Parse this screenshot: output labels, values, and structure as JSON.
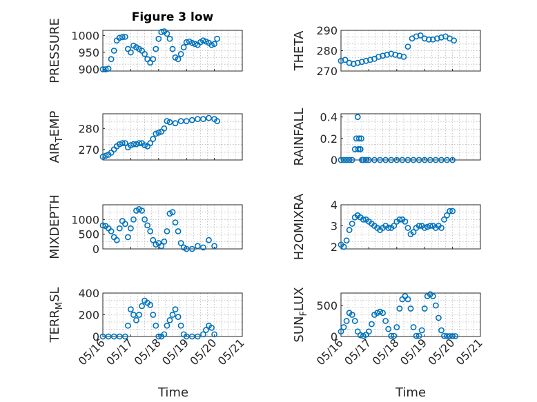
{
  "chart_data": {
    "type": "scatter",
    "marker": "circle",
    "color": "#0072BD",
    "grid": true,
    "title": "Figure 3 low",
    "xlabel": "Time",
    "xticks": [
      "05/16",
      "05/17",
      "05/18",
      "05/19",
      "05/20",
      "05/21"
    ],
    "xlim": [
      0,
      5
    ],
    "x_unit": "days from 05/16",
    "panels": [
      {
        "name": "pressure",
        "ylabel": "PRESSURE",
        "ylim": [
          895,
          1015
        ],
        "yticks": [
          900,
          950,
          1000
        ],
        "x": [
          0,
          0.1,
          0.2,
          0.3,
          0.4,
          0.5,
          0.6,
          0.7,
          0.8,
          0.9,
          1.0,
          1.1,
          1.2,
          1.3,
          1.4,
          1.5,
          1.6,
          1.7,
          1.8,
          1.9,
          2.0,
          2.1,
          2.2,
          2.3,
          2.4,
          2.5,
          2.6,
          2.7,
          2.8,
          2.9,
          3.0,
          3.1,
          3.2,
          3.3,
          3.4,
          3.5,
          3.6,
          3.7,
          3.8,
          3.9,
          4.0,
          4.1
        ],
        "values": [
          900,
          900,
          902,
          930,
          955,
          985,
          993,
          995,
          996,
          960,
          950,
          970,
          965,
          960,
          955,
          945,
          930,
          920,
          930,
          960,
          990,
          1010,
          1012,
          1005,
          990,
          960,
          935,
          930,
          945,
          965,
          980,
          982,
          978,
          975,
          972,
          980,
          985,
          982,
          978,
          972,
          975,
          990
        ]
      },
      {
        "name": "theta",
        "ylabel": "THETA",
        "ylim": [
          270,
          290
        ],
        "yticks": [
          270,
          280,
          290
        ],
        "x": [
          0,
          0.15,
          0.3,
          0.45,
          0.6,
          0.75,
          0.9,
          1.05,
          1.2,
          1.35,
          1.5,
          1.65,
          1.8,
          1.95,
          2.1,
          2.25,
          2.4,
          2.55,
          2.7,
          2.85,
          3.0,
          3.15,
          3.3,
          3.45,
          3.6,
          3.75,
          3.9,
          4.05
        ],
        "values": [
          275,
          275.5,
          274,
          273.5,
          274,
          274.5,
          275,
          275.5,
          276,
          277,
          277.5,
          278,
          278.5,
          278,
          277.5,
          277,
          282,
          286,
          287,
          287.5,
          286,
          285.5,
          285.5,
          286,
          286.5,
          287,
          286,
          285
        ]
      },
      {
        "name": "air-temp",
        "ylabel": "AIR_TEMP",
        "ylim": [
          265,
          287
        ],
        "yticks": [
          270,
          280
        ],
        "x": [
          0,
          0.1,
          0.2,
          0.3,
          0.4,
          0.5,
          0.6,
          0.7,
          0.8,
          0.9,
          1.0,
          1.1,
          1.2,
          1.3,
          1.4,
          1.5,
          1.6,
          1.7,
          1.8,
          1.9,
          2.0,
          2.1,
          2.2,
          2.3,
          2.4,
          2.6,
          2.8,
          3.0,
          3.2,
          3.4,
          3.6,
          3.8,
          4.0,
          4.1
        ],
        "values": [
          266.5,
          267,
          267.5,
          268.5,
          270,
          271.5,
          272.5,
          273,
          273,
          271,
          272,
          272.5,
          272.5,
          273,
          273,
          272,
          271.5,
          273,
          275,
          277.5,
          278,
          278.5,
          280,
          283.5,
          283,
          282.5,
          283.5,
          283.5,
          284,
          284.5,
          284.5,
          285,
          284.5,
          283.5
        ]
      },
      {
        "name": "rainfall",
        "ylabel": "RAINFALL",
        "ylim": [
          0,
          0.43
        ],
        "yticks": [
          0,
          0.2,
          0.4
        ],
        "x": [
          0,
          0.1,
          0.2,
          0.3,
          0.4,
          0.5,
          0.55,
          0.6,
          0.62,
          0.65,
          0.68,
          0.7,
          0.73,
          0.75,
          0.8,
          0.9,
          1.0,
          1.2,
          1.4,
          1.6,
          1.8,
          2.0,
          2.2,
          2.4,
          2.6,
          2.8,
          3.0,
          3.2,
          3.4,
          3.6,
          3.8,
          4.0
        ],
        "values": [
          0,
          0,
          0,
          0,
          0,
          0.1,
          0.2,
          0.4,
          0.1,
          0.2,
          0.1,
          0.1,
          0.2,
          0,
          0,
          0,
          0,
          0,
          0,
          0,
          0,
          0,
          0,
          0,
          0,
          0,
          0,
          0,
          0,
          0,
          0,
          0
        ]
      },
      {
        "name": "mixdepth",
        "ylabel": "MIXDEPTH",
        "ylim": [
          0,
          1500
        ],
        "yticks": [
          0,
          500,
          1000
        ],
        "x": [
          0,
          0.1,
          0.2,
          0.3,
          0.4,
          0.5,
          0.6,
          0.7,
          0.8,
          0.9,
          1.0,
          1.1,
          1.2,
          1.3,
          1.4,
          1.5,
          1.6,
          1.7,
          1.8,
          1.9,
          2.0,
          2.1,
          2.2,
          2.3,
          2.4,
          2.5,
          2.6,
          2.7,
          2.8,
          2.9,
          3.0,
          3.2,
          3.4,
          3.6,
          3.8,
          4.0
        ],
        "values": [
          800,
          780,
          700,
          600,
          400,
          300,
          700,
          950,
          850,
          400,
          700,
          1000,
          1300,
          1350,
          1300,
          1000,
          800,
          600,
          300,
          150,
          200,
          100,
          250,
          600,
          1200,
          1250,
          900,
          600,
          200,
          50,
          0,
          0,
          100,
          50,
          300,
          100
        ]
      },
      {
        "name": "h2omixra",
        "ylabel": "H2OMIXRA",
        "ylim": [
          1.9,
          4
        ],
        "yticks": [
          2,
          3,
          4
        ],
        "x": [
          0,
          0.1,
          0.2,
          0.3,
          0.4,
          0.5,
          0.6,
          0.7,
          0.8,
          0.9,
          1.0,
          1.1,
          1.2,
          1.3,
          1.4,
          1.5,
          1.6,
          1.7,
          1.8,
          1.9,
          2.0,
          2.1,
          2.2,
          2.3,
          2.4,
          2.5,
          2.6,
          2.7,
          2.8,
          2.9,
          3.0,
          3.1,
          3.2,
          3.3,
          3.4,
          3.5,
          3.6,
          3.7,
          3.8,
          3.9,
          4.0
        ],
        "values": [
          2.1,
          2.0,
          2.3,
          2.8,
          3.1,
          3.4,
          3.5,
          3.4,
          3.3,
          3.3,
          3.2,
          3.1,
          3.0,
          2.9,
          2.8,
          2.9,
          3.0,
          2.9,
          2.9,
          3.0,
          3.2,
          3.3,
          3.3,
          3.2,
          2.9,
          2.6,
          2.7,
          2.9,
          3.0,
          3.0,
          2.9,
          2.95,
          3.0,
          3.0,
          2.9,
          3.0,
          2.9,
          3.3,
          3.5,
          3.7,
          3.7
        ]
      },
      {
        "name": "terr-msl",
        "ylabel": "TERR_MSL",
        "ylim": [
          0,
          400
        ],
        "yticks": [
          0,
          200,
          400
        ],
        "x": [
          0,
          0.2,
          0.4,
          0.6,
          0.8,
          0.9,
          1.0,
          1.1,
          1.2,
          1.3,
          1.4,
          1.5,
          1.6,
          1.7,
          1.8,
          1.9,
          2.0,
          2.1,
          2.2,
          2.3,
          2.4,
          2.5,
          2.6,
          2.7,
          2.8,
          2.9,
          3.0,
          3.2,
          3.4,
          3.6,
          3.7,
          3.8,
          3.9,
          4.0
        ],
        "values": [
          0,
          0,
          0,
          0,
          0,
          100,
          250,
          200,
          150,
          200,
          280,
          330,
          310,
          290,
          200,
          100,
          0,
          0,
          20,
          100,
          150,
          200,
          250,
          180,
          100,
          20,
          0,
          0,
          0,
          20,
          60,
          100,
          80,
          20
        ]
      },
      {
        "name": "sun-flux",
        "ylabel": "SUN_FLUX",
        "ylim": [
          0,
          700
        ],
        "yticks": [
          0,
          500
        ],
        "x": [
          0,
          0.1,
          0.2,
          0.3,
          0.4,
          0.5,
          0.6,
          0.7,
          0.8,
          0.9,
          1.0,
          1.1,
          1.2,
          1.3,
          1.4,
          1.5,
          1.6,
          1.7,
          1.8,
          1.9,
          2.0,
          2.1,
          2.2,
          2.3,
          2.4,
          2.5,
          2.6,
          2.7,
          2.8,
          2.9,
          3.0,
          3.1,
          3.2,
          3.3,
          3.4,
          3.5,
          3.6,
          3.7,
          3.8,
          3.9,
          4.0,
          4.1
        ],
        "values": [
          80,
          150,
          250,
          380,
          350,
          250,
          80,
          20,
          10,
          30,
          80,
          200,
          350,
          380,
          400,
          380,
          250,
          120,
          10,
          10,
          150,
          450,
          600,
          650,
          600,
          450,
          150,
          10,
          10,
          100,
          450,
          650,
          680,
          650,
          500,
          300,
          100,
          10,
          5,
          5,
          5,
          5
        ]
      }
    ]
  }
}
